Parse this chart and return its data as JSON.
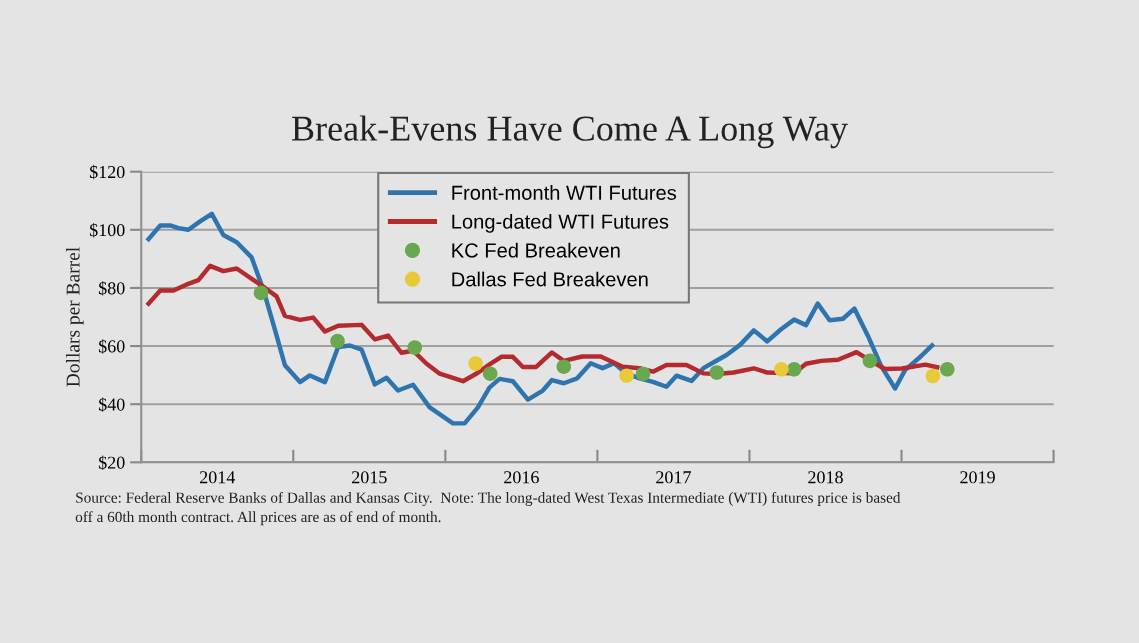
{
  "chart_data": {
    "type": "line",
    "title": "Break-Evens Have Come A Long Way",
    "ylabel": "Dollars per Barrel",
    "xlim": [
      2014,
      2020
    ],
    "xticks": [
      {
        "value": 2014,
        "label": null
      },
      {
        "value": 2015,
        "label": null
      },
      {
        "value": 2016,
        "label": null
      },
      {
        "value": 2017,
        "label": null
      },
      {
        "value": 2018,
        "label": null
      },
      {
        "value": 2019,
        "label": null
      },
      {
        "value": 2020,
        "label": null
      },
      {
        "value": 2014.5,
        "label": "2014"
      },
      {
        "value": 2015.5,
        "label": "2015"
      },
      {
        "value": 2016.5,
        "label": "2016"
      },
      {
        "value": 2017.5,
        "label": "2017"
      },
      {
        "value": 2018.5,
        "label": "2018"
      },
      {
        "value": 2019.5,
        "label": "2019"
      }
    ],
    "ylim": [
      20,
      120
    ],
    "yticks": [
      {
        "value": 20,
        "label": "$20"
      },
      {
        "value": 40,
        "label": "$40"
      },
      {
        "value": 60,
        "label": "$60"
      },
      {
        "value": 80,
        "label": "$80"
      },
      {
        "value": 100,
        "label": "$100"
      },
      {
        "value": 120,
        "label": "$120"
      }
    ],
    "grid": "y",
    "legend": "top",
    "annotations": [
      "Source: Federal Reserve Banks of Dallas and Kansas City.  Note: The long-dated West Texas Intermediate (WTI) futures price is based",
      "off a 60th month contract. All prices are as of end of month."
    ],
    "series": [
      {
        "name": "Front-month WTI Futures",
        "color": "#2e75b0",
        "marker": "none",
        "x": [
          2014.048,
          2014.125,
          2014.19,
          2014.245,
          2014.31,
          2014.387,
          2014.464,
          2014.54,
          2014.628,
          2014.726,
          2014.803,
          2014.88,
          2014.945,
          2015.044,
          2015.109,
          2015.208,
          2015.295,
          2015.372,
          2015.449,
          2015.536,
          2015.613,
          2015.689,
          2015.788,
          2015.897,
          2016.05,
          2016.127,
          2016.214,
          2016.291,
          2016.357,
          2016.444,
          2016.543,
          2016.641,
          2016.701,
          2016.779,
          2016.867,
          2016.956,
          2017.033,
          2017.111,
          2017.188,
          2017.277,
          2017.365,
          2017.454,
          2017.52,
          2017.619,
          2017.697,
          2017.774,
          2017.852,
          2017.94,
          2018.029,
          2018.117,
          2018.206,
          2018.294,
          2018.372,
          2018.449,
          2018.527,
          2018.615,
          2018.69,
          2018.78,
          2018.867,
          2018.958,
          2019.024,
          2019.113,
          2019.201
        ],
        "values": [
          96.8,
          101.5,
          101.5,
          100.6,
          100,
          102.9,
          105.5,
          98.2,
          95.7,
          90.5,
          79.4,
          65.5,
          53.4,
          47.6,
          49.9,
          47.6,
          59.7,
          60.2,
          58.8,
          46.8,
          49.1,
          44.7,
          46.7,
          38.9,
          33.4,
          33.4,
          38.9,
          45.8,
          48.7,
          47.9,
          41.6,
          44.7,
          48.3,
          47.2,
          48.9,
          54.1,
          52.4,
          54.1,
          50.6,
          48.9,
          47.7,
          46,
          49.8,
          48,
          52.4,
          54.7,
          57,
          60.5,
          65.4,
          61.6,
          65.7,
          69.1,
          67.2,
          74.6,
          68.9,
          69.4,
          72.9,
          63.4,
          53,
          45.4,
          51.8,
          55.8,
          60.2
        ]
      },
      {
        "name": "Long-dated WTI Futures",
        "color": "#b52a2e",
        "marker": "none",
        "x": [
          2014.048,
          2014.125,
          2014.212,
          2014.3,
          2014.376,
          2014.453,
          2014.54,
          2014.628,
          2014.716,
          2014.814,
          2014.89,
          2014.945,
          2015.044,
          2015.131,
          2015.208,
          2015.295,
          2015.449,
          2015.536,
          2015.624,
          2015.711,
          2015.788,
          2015.875,
          2015.963,
          2016.116,
          2016.214,
          2016.291,
          2016.368,
          2016.444,
          2016.51,
          2016.597,
          2016.701,
          2016.779,
          2016.9,
          2017.022,
          2017.166,
          2017.277,
          2017.365,
          2017.454,
          2017.586,
          2017.697,
          2017.785,
          2017.896,
          2018.029,
          2018.117,
          2018.294,
          2018.372,
          2018.471,
          2018.582,
          2018.704,
          2018.803,
          2018.892,
          2019.002,
          2019.157,
          2019.235
        ],
        "values": [
          74.6,
          79.1,
          79.1,
          81.2,
          82.7,
          87.6,
          85.8,
          86.7,
          83.5,
          80,
          77.1,
          70.4,
          69,
          69.8,
          65,
          67,
          67.3,
          62.3,
          63.6,
          57.7,
          58.4,
          54,
          50.5,
          47.9,
          50.8,
          53.7,
          56.3,
          56.3,
          52.8,
          52.8,
          57.8,
          54.9,
          56.4,
          56.4,
          52.9,
          52.4,
          51.2,
          53.5,
          53.5,
          50.6,
          50.4,
          50.9,
          52.3,
          50.9,
          50.6,
          53.9,
          54.9,
          55.3,
          57.9,
          54.7,
          52.1,
          52.3,
          53.6,
          52.7
        ]
      },
      {
        "name": "KC Fed Breakeven",
        "type": "scatter",
        "color": "#6aa84f",
        "marker": "circle",
        "x": [
          2014.788,
          2015.291,
          2015.799,
          2016.295,
          2016.779,
          2017.3,
          2017.785,
          2018.294,
          2018.792,
          2019.301
        ],
        "values": [
          78.3,
          61.7,
          59.5,
          50.5,
          52.9,
          50.4,
          50.9,
          52,
          54.9,
          52
        ]
      },
      {
        "name": "Dallas Fed Breakeven",
        "type": "scatter",
        "color": "#e8c93a",
        "marker": "circle",
        "x": [
          2016.199,
          2017.192,
          2018.21,
          2019.206
        ],
        "values": [
          54,
          49.8,
          52,
          49.7
        ]
      }
    ]
  }
}
